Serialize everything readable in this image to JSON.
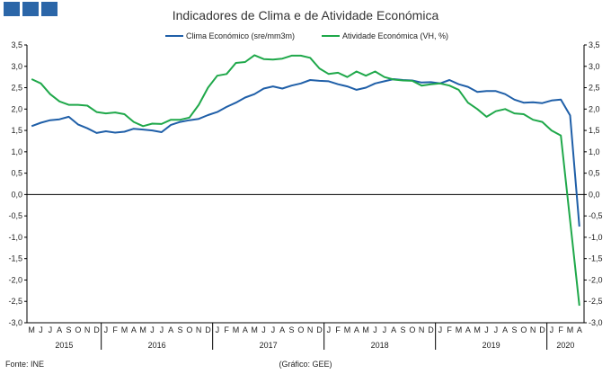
{
  "header": {
    "title": "Indicadores de Clima e de Atividade Económica"
  },
  "footer": {
    "source": "Fonte: INE",
    "credit": "(Gráfico: GEE)"
  },
  "chart_data": {
    "type": "line",
    "title": "Indicadores de Clima e de Atividade Económica",
    "ylim": [
      -3.0,
      3.5
    ],
    "y_ticks": [
      "3,5",
      "3,0",
      "2,5",
      "2,0",
      "1,5",
      "1,0",
      "0,5",
      "0,0",
      "-0,5",
      "-1,0",
      "-1,5",
      "-2,0",
      "-2,5",
      "-3,0"
    ],
    "grid": false,
    "legend_position": "top-center",
    "months": [
      "M",
      "J",
      "J",
      "A",
      "S",
      "O",
      "N",
      "D",
      "J",
      "F",
      "M",
      "A",
      "M",
      "J",
      "J",
      "A",
      "S",
      "O",
      "N",
      "D",
      "J",
      "F",
      "M",
      "A",
      "M",
      "J",
      "J",
      "A",
      "S",
      "O",
      "N",
      "D",
      "J",
      "F",
      "M",
      "A",
      "M",
      "J",
      "J",
      "A",
      "S",
      "O",
      "N",
      "D",
      "J",
      "F",
      "M",
      "A",
      "M",
      "J",
      "J",
      "A",
      "S",
      "O",
      "N",
      "D",
      "J",
      "F",
      "M",
      "A"
    ],
    "years": [
      {
        "label": "2015",
        "start": 0,
        "end": 7
      },
      {
        "label": "2016",
        "start": 8,
        "end": 19
      },
      {
        "label": "2017",
        "start": 20,
        "end": 31
      },
      {
        "label": "2018",
        "start": 32,
        "end": 43
      },
      {
        "label": "2019",
        "start": 44,
        "end": 55
      },
      {
        "label": "2020",
        "start": 56,
        "end": 59
      }
    ],
    "series": [
      {
        "name": "Clima Económico (sre/mm3m)",
        "color": "#1f5fa8",
        "values": [
          1.6,
          1.68,
          1.74,
          1.76,
          1.82,
          1.64,
          1.55,
          1.44,
          1.48,
          1.45,
          1.47,
          1.54,
          1.52,
          1.5,
          1.46,
          1.63,
          1.7,
          1.74,
          1.77,
          1.86,
          1.93,
          2.05,
          2.15,
          2.27,
          2.35,
          2.48,
          2.53,
          2.48,
          2.55,
          2.6,
          2.68,
          2.66,
          2.65,
          2.58,
          2.53,
          2.45,
          2.5,
          2.6,
          2.65,
          2.7,
          2.68,
          2.67,
          2.62,
          2.63,
          2.6,
          2.68,
          2.58,
          2.52,
          2.4,
          2.42,
          2.42,
          2.35,
          2.22,
          2.15,
          2.16,
          2.14,
          2.2,
          2.22,
          1.85,
          -0.75
        ]
      },
      {
        "name": "Atividade Económica (VH, %)",
        "color": "#1fa84a",
        "values": [
          2.7,
          2.6,
          2.35,
          2.18,
          2.1,
          2.1,
          2.08,
          1.93,
          1.9,
          1.92,
          1.88,
          1.7,
          1.6,
          1.66,
          1.65,
          1.75,
          1.75,
          1.8,
          2.1,
          2.5,
          2.78,
          2.82,
          3.08,
          3.1,
          3.26,
          3.17,
          3.16,
          3.18,
          3.25,
          3.25,
          3.2,
          2.95,
          2.82,
          2.85,
          2.75,
          2.88,
          2.78,
          2.88,
          2.75,
          2.69,
          2.67,
          2.66,
          2.55,
          2.58,
          2.6,
          2.55,
          2.45,
          2.15,
          2.0,
          1.82,
          1.95,
          2.0,
          1.9,
          1.88,
          1.75,
          1.7,
          1.5,
          1.38,
          null,
          -2.6
        ]
      }
    ]
  }
}
